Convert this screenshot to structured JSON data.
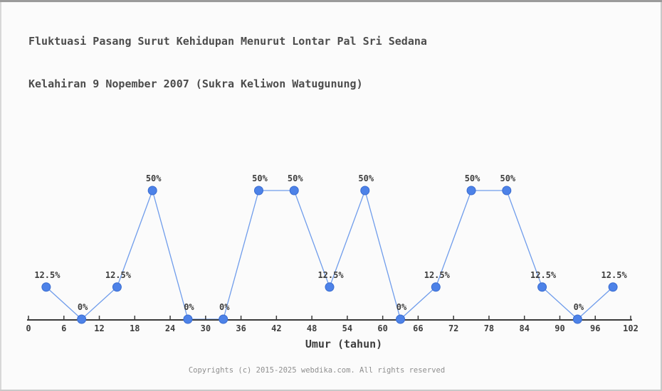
{
  "header": {
    "title_line1": "Fluktuasi Pasang Surut Kehidupan Menurut Lontar Pal Sri Sedana",
    "title_line2": "Kelahiran 9 Nopember 2007 (Sukra Keliwon Watugunung)"
  },
  "chart_data": {
    "type": "line",
    "title": "Fluktuasi Pasang Surut Kehidupan Menurut Lontar Pal Sri Sedana Kelahiran 9 Nopember 2007 (Sukra Keliwon Watugunung)",
    "xlabel": "Umur (tahun)",
    "ylabel": "",
    "x": [
      3,
      9,
      15,
      21,
      27,
      33,
      39,
      45,
      51,
      57,
      63,
      69,
      75,
      81,
      87,
      93,
      99
    ],
    "values": [
      12.5,
      0,
      12.5,
      50,
      0,
      0,
      50,
      50,
      12.5,
      50,
      0,
      12.5,
      50,
      50,
      12.5,
      0,
      12.5
    ],
    "point_labels": [
      "12.5%",
      "0%",
      "12.5%",
      "50%",
      "0%",
      "0%",
      "50%",
      "50%",
      "12.5%",
      "50%",
      "0%",
      "12.5%",
      "50%",
      "50%",
      "12.5%",
      "0%",
      "12.5%"
    ],
    "x_ticks": [
      0,
      6,
      12,
      18,
      24,
      30,
      36,
      42,
      48,
      54,
      60,
      66,
      72,
      78,
      84,
      90,
      96,
      102
    ],
    "xlim": [
      0,
      102
    ],
    "ylim": [
      0,
      55
    ],
    "grid": false,
    "legend": "none",
    "colors": {
      "line": "#6f9ceb",
      "point_fill": "#4d82e8",
      "point_stroke": "#3a6cd0",
      "axis": "#3a3a3a",
      "label": "#3d3d3d",
      "title": "#4c4c4c",
      "footer": "#8f8f8f",
      "background": "#fbfbfb"
    }
  },
  "footer": {
    "copyright": "Copyrights (c) 2015-2025 webdika.com. All rights reserved"
  }
}
